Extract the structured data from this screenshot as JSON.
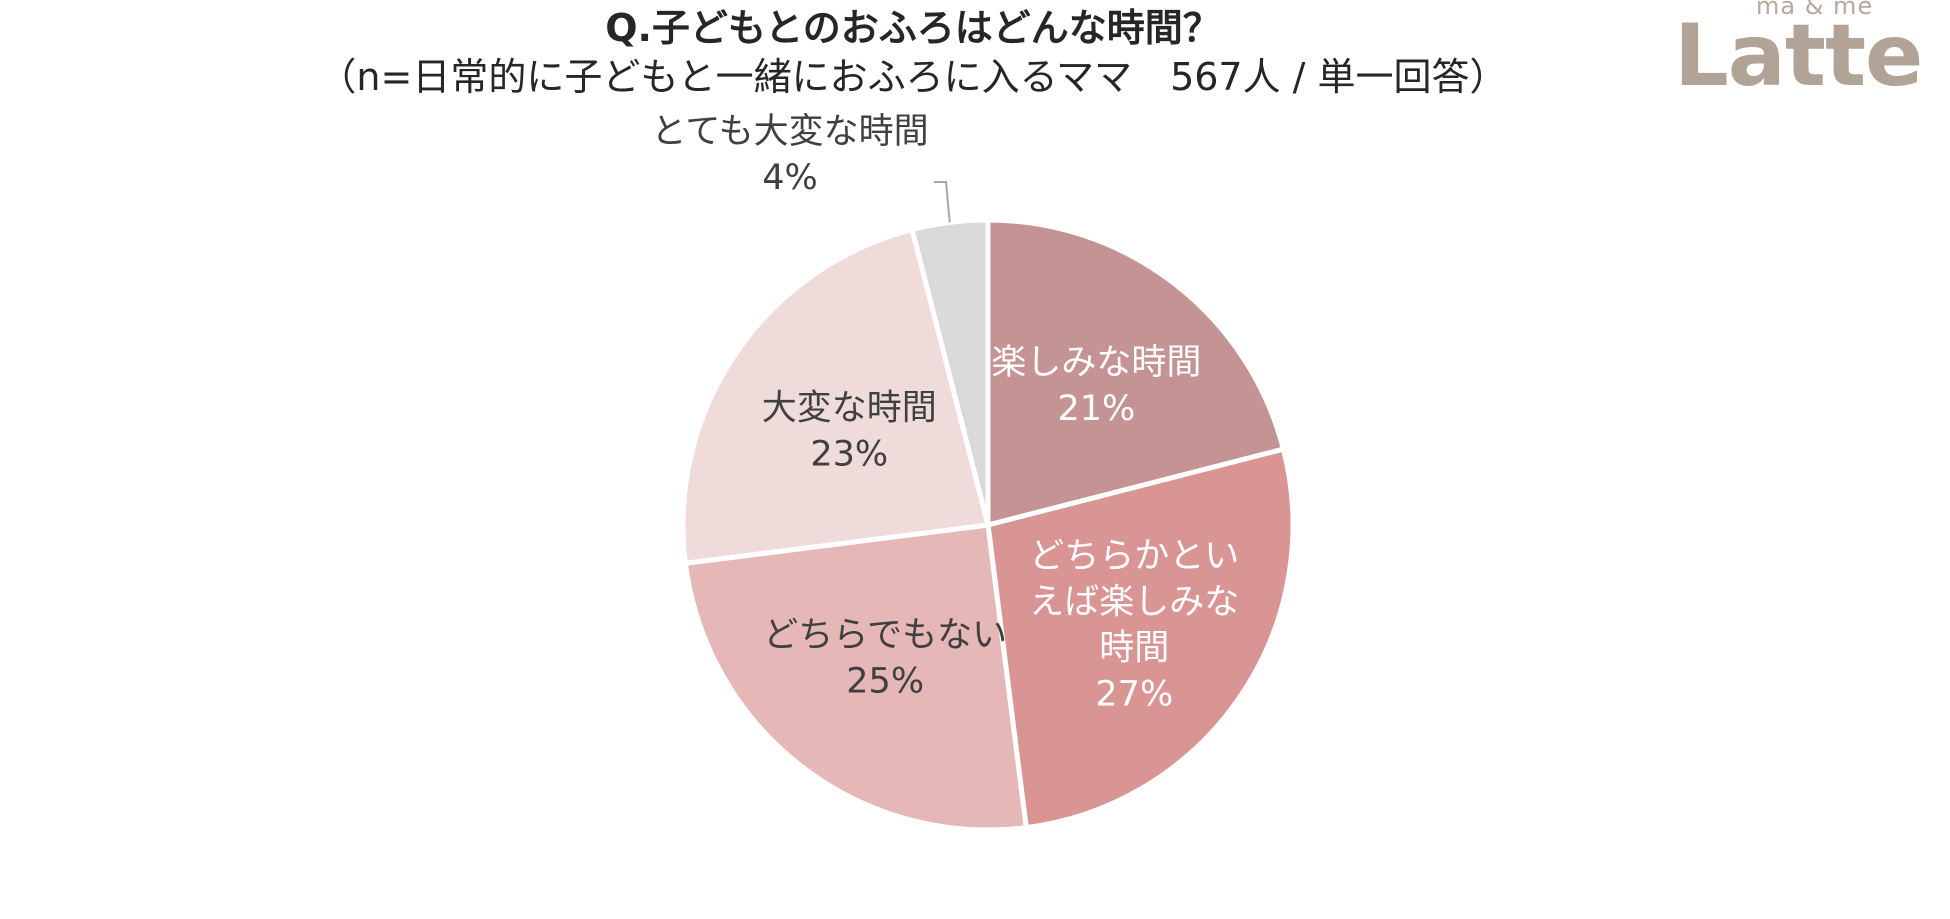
{
  "title": "Q.子どもとのおふろはどんな時間？",
  "subtitle": "（n=日常的に子どもと一緒におふろに入るママ　567人 / 単一回答）",
  "logo": {
    "small_text": "mä & më",
    "brand_text": "Latte"
  },
  "chart_data": {
    "type": "pie",
    "title": "Q.子どもとのおふろはどんな時間？",
    "subtitle": "（n=日常的に子どもと一緒におふろに入るママ　567人 / 単一回答）",
    "start_angle_deg": 0,
    "direction": "clockwise",
    "slices": [
      {
        "label": "楽しみな時間",
        "value": 21,
        "display": "21%",
        "color": "#c49494",
        "text_color": "#ffffff",
        "label_lines": [
          "楽しみな時間",
          "21%"
        ]
      },
      {
        "label": "どちらかといえば楽しみな時間",
        "value": 27,
        "display": "27%",
        "color": "#d99494",
        "text_color": "#ffffff",
        "label_lines": [
          "どちらかとい",
          "えば楽しみな",
          "時間",
          "27%"
        ]
      },
      {
        "label": "どちらでもない",
        "value": 25,
        "display": "25%",
        "color": "#e6b7b7",
        "text_color": "#404040",
        "label_lines": [
          "どちらでもない",
          "25%"
        ]
      },
      {
        "label": "大変な時間",
        "value": 23,
        "display": "23%",
        "color": "#f0dbdb",
        "text_color": "#404040",
        "label_lines": [
          "大変な時間",
          "23%"
        ]
      },
      {
        "label": "とても大変な時間",
        "value": 4,
        "display": "4%",
        "color": "#d9d9d9",
        "text_color": "#404040",
        "label_lines": [
          "とても大変な時間",
          "4%"
        ],
        "callout": true
      }
    ]
  }
}
